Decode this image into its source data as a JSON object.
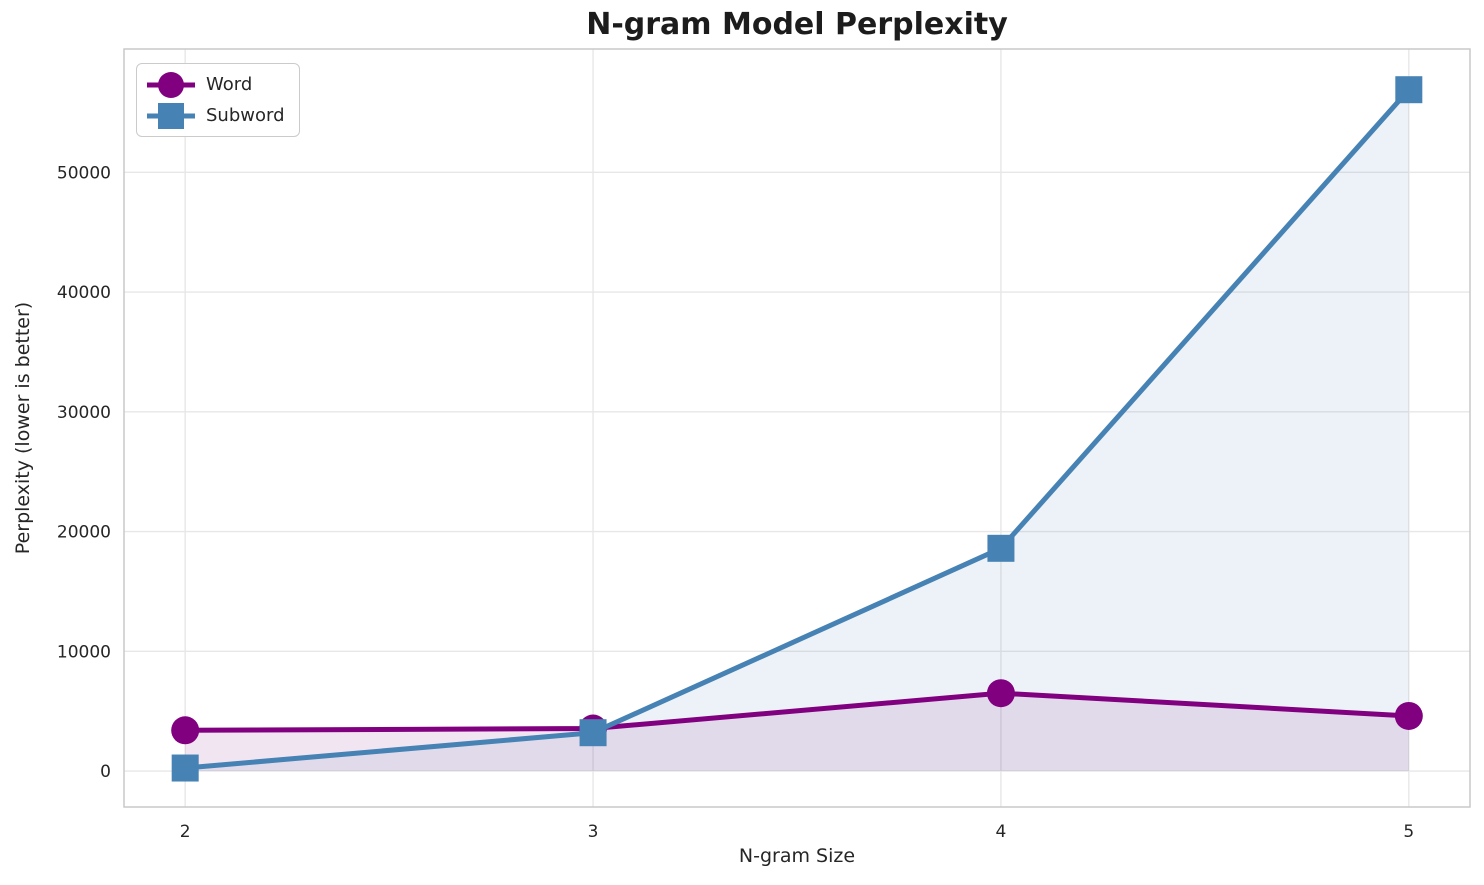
{
  "chart_data": {
    "type": "line",
    "title": "N-gram Model Perplexity",
    "xlabel": "N-gram Size",
    "ylabel": "Perplexity (lower is better)",
    "x": [
      2,
      3,
      4,
      5
    ],
    "xticklabels": [
      "2",
      "3",
      "4",
      "5"
    ],
    "yticks": [
      0,
      10000,
      20000,
      30000,
      40000,
      50000
    ],
    "yticklabels": [
      "0",
      "10000",
      "20000",
      "30000",
      "40000",
      "50000"
    ],
    "xlim": [
      1.85,
      5.15
    ],
    "ylim": [
      -3005,
      60300
    ],
    "grid": true,
    "legend_position": "upper-left",
    "series": [
      {
        "name": "Word",
        "color": "#800080",
        "marker": "circle",
        "fill_opacity": 0.1,
        "values": [
          3400,
          3550,
          6500,
          4600
        ]
      },
      {
        "name": "Subword",
        "color": "#4682B4",
        "marker": "square",
        "fill_opacity": 0.1,
        "values": [
          250,
          3200,
          18600,
          56900
        ]
      }
    ]
  }
}
